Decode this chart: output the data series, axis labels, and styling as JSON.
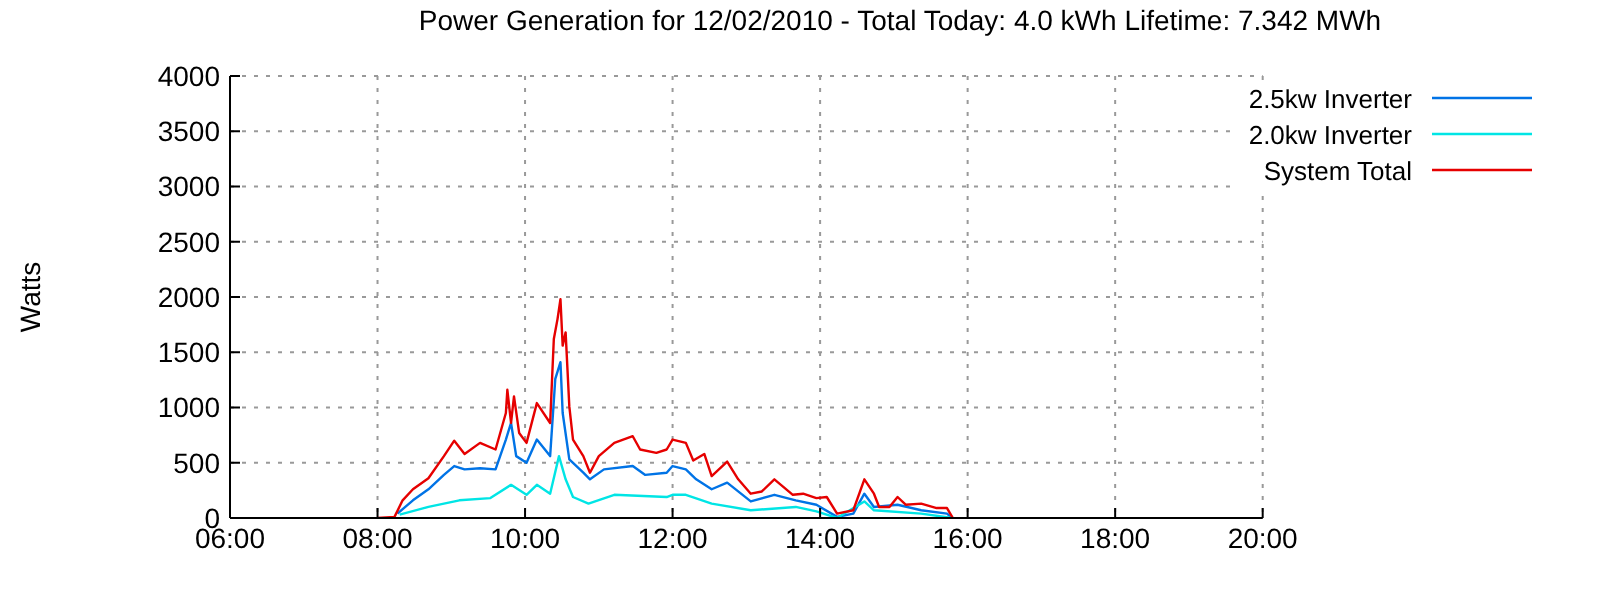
{
  "chart_data": {
    "type": "line",
    "title": "Power Generation for 12/02/2010 - Total Today: 4.0 kWh   Lifetime: 7.342 MWh",
    "ylabel": "Watts",
    "xlim": [
      6,
      20
    ],
    "xticks": [
      {
        "value": 6,
        "label": "06:00"
      },
      {
        "value": 8,
        "label": "08:00"
      },
      {
        "value": 10,
        "label": "10:00"
      },
      {
        "value": 12,
        "label": "12:00"
      },
      {
        "value": 14,
        "label": "14:00"
      },
      {
        "value": 16,
        "label": "16:00"
      },
      {
        "value": 18,
        "label": "18:00"
      },
      {
        "value": 20,
        "label": "20:00"
      }
    ],
    "ylim": [
      0,
      4000
    ],
    "yticks": [
      0,
      500,
      1000,
      1500,
      2000,
      2500,
      3000,
      3500,
      4000
    ],
    "grid": true,
    "legend": "top right",
    "marker": "none",
    "line_style": "solid",
    "series": [
      {
        "name": "2.5kw Inverter",
        "color": "#0073e6",
        "x": [
          8.27,
          8.48,
          8.69,
          8.9,
          9.04,
          9.18,
          9.39,
          9.6,
          9.74,
          9.81,
          9.88,
          10.02,
          10.16,
          10.34,
          10.41,
          10.48,
          10.51,
          10.6,
          10.79,
          10.88,
          11.07,
          11.46,
          11.63,
          11.92,
          12.0,
          12.18,
          12.32,
          12.53,
          12.74,
          13.06,
          13.38,
          13.67,
          13.95,
          14.23,
          14.45,
          14.6,
          14.73,
          15.05,
          15.37,
          15.72,
          15.79
        ],
        "values": [
          40,
          160,
          260,
          390,
          470,
          440,
          450,
          440,
          710,
          860,
          560,
          500,
          710,
          560,
          1260,
          1410,
          950,
          530,
          410,
          350,
          440,
          470,
          390,
          410,
          470,
          440,
          350,
          260,
          320,
          150,
          210,
          160,
          120,
          10,
          40,
          220,
          100,
          120,
          70,
          40,
          0
        ]
      },
      {
        "name": "2.0kw Inverter",
        "color": "#00e5e5",
        "x": [
          8.3,
          8.69,
          9.11,
          9.53,
          9.81,
          10.02,
          10.16,
          10.34,
          10.46,
          10.55,
          10.65,
          10.86,
          11.21,
          11.92,
          12.0,
          12.18,
          12.53,
          13.06,
          13.67,
          13.95,
          14.23,
          14.6,
          14.73,
          15.37,
          15.79
        ],
        "values": [
          30,
          100,
          160,
          180,
          300,
          210,
          300,
          220,
          560,
          350,
          190,
          130,
          210,
          190,
          210,
          210,
          130,
          70,
          100,
          60,
          0,
          150,
          70,
          40,
          0
        ]
      },
      {
        "name": "System Total",
        "color": "#e60000",
        "x": [
          8.0,
          8.23,
          8.34,
          8.48,
          8.69,
          8.9,
          9.04,
          9.18,
          9.39,
          9.6,
          9.74,
          9.76,
          9.81,
          9.85,
          9.92,
          10.02,
          10.16,
          10.34,
          10.39,
          10.44,
          10.48,
          10.51,
          10.55,
          10.6,
          10.65,
          10.79,
          10.88,
          11.0,
          11.21,
          11.46,
          11.56,
          11.78,
          11.92,
          12.0,
          12.18,
          12.28,
          12.43,
          12.53,
          12.74,
          12.89,
          13.06,
          13.21,
          13.38,
          13.63,
          13.77,
          13.95,
          14.09,
          14.23,
          14.45,
          14.6,
          14.73,
          14.8,
          14.94,
          15.05,
          15.16,
          15.37,
          15.58,
          15.72,
          15.8
        ],
        "values": [
          0,
          10,
          160,
          260,
          360,
          560,
          700,
          580,
          680,
          620,
          950,
          1160,
          860,
          1100,
          770,
          680,
          1040,
          860,
          1620,
          1800,
          1980,
          1560,
          1680,
          1010,
          710,
          560,
          410,
          560,
          680,
          740,
          620,
          590,
          620,
          710,
          680,
          520,
          580,
          380,
          510,
          350,
          220,
          240,
          350,
          210,
          220,
          180,
          190,
          40,
          70,
          350,
          220,
          100,
          100,
          190,
          120,
          130,
          90,
          90,
          0
        ]
      }
    ]
  }
}
